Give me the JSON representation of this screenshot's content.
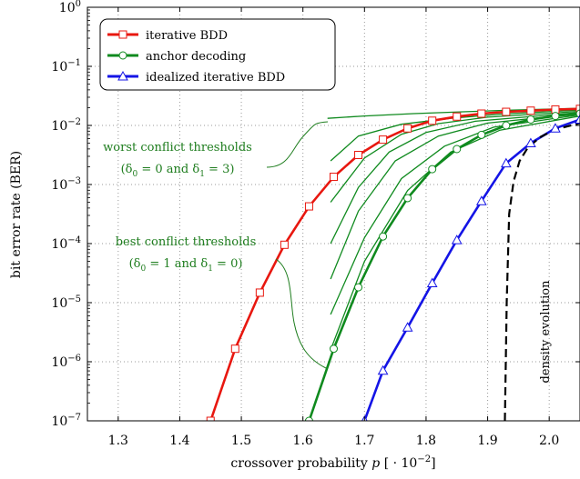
{
  "colors": {
    "iterative": "#e8170f",
    "anchor": "#0f8a1e",
    "ideal": "#1414e6",
    "density": "#000000",
    "annotation": "#1e7d1e",
    "grid": "#9a9a9a"
  },
  "chart_data": {
    "type": "line",
    "xlabel": "crossover probability p [·10−2]",
    "ylabel": "bit error rate (BER)",
    "xlim": [
      1.25,
      2.05
    ],
    "ylim_log10": [
      -7,
      0
    ],
    "log_y": true,
    "grid": true,
    "x_ticks": [
      {
        "value": 1.3,
        "label": "1.3"
      },
      {
        "value": 1.4,
        "label": "1.4"
      },
      {
        "value": 1.5,
        "label": "1.5"
      },
      {
        "value": 1.6,
        "label": "1.6"
      },
      {
        "value": 1.7,
        "label": "1.7"
      },
      {
        "value": 1.8,
        "label": "1.8"
      },
      {
        "value": 1.9,
        "label": "1.9"
      },
      {
        "value": 2.0,
        "label": "2.0"
      }
    ],
    "y_ticks": [
      {
        "exp": 0,
        "base": "10",
        "sup": "0"
      },
      {
        "exp": -1,
        "base": "10",
        "sup": "−1"
      },
      {
        "exp": -2,
        "base": "10",
        "sup": "−2"
      },
      {
        "exp": -3,
        "base": "10",
        "sup": "−3"
      },
      {
        "exp": -4,
        "base": "10",
        "sup": "−4"
      },
      {
        "exp": -5,
        "base": "10",
        "sup": "−5"
      },
      {
        "exp": -6,
        "base": "10",
        "sup": "−6"
      },
      {
        "exp": -7,
        "base": "10",
        "sup": "−7"
      }
    ],
    "legend_position": "top-left",
    "series": [
      {
        "name": "iterative BDD",
        "marker": "square",
        "x": [
          1.45,
          1.49,
          1.53,
          1.57,
          1.61,
          1.65,
          1.69,
          1.73,
          1.77,
          1.81,
          1.85,
          1.89,
          1.93,
          1.97,
          2.01,
          2.05
        ],
        "log10_y": [
          -7.0,
          -5.78,
          -4.83,
          -4.02,
          -3.37,
          -2.87,
          -2.5,
          -2.24,
          -2.05,
          -1.92,
          -1.85,
          -1.8,
          -1.77,
          -1.75,
          -1.73,
          -1.72
        ]
      },
      {
        "name": "anchor decoding",
        "marker": "circle",
        "x": [
          1.61,
          1.65,
          1.69,
          1.73,
          1.77,
          1.81,
          1.85,
          1.89,
          1.93,
          1.97,
          2.01,
          2.05
        ],
        "log10_y": [
          -7.0,
          -5.78,
          -4.74,
          -3.88,
          -3.23,
          -2.74,
          -2.4,
          -2.16,
          -2.0,
          -1.9,
          -1.84,
          -1.8
        ]
      },
      {
        "name": "idealized iterative BDD",
        "marker": "triangle",
        "x": [
          1.7,
          1.73,
          1.77,
          1.81,
          1.85,
          1.89,
          1.93,
          1.97,
          2.01,
          2.05
        ],
        "log10_y": [
          -7.0,
          -6.15,
          -5.42,
          -4.67,
          -3.94,
          -3.28,
          -2.64,
          -2.3,
          -2.05,
          -1.9
        ]
      },
      {
        "name": "density evolution",
        "style": "dashed",
        "x": [
          1.928,
          1.931,
          1.935,
          1.942,
          1.952,
          1.965,
          1.985,
          2.01,
          2.05
        ],
        "log10_y": [
          -7.0,
          -5.0,
          -3.5,
          -2.95,
          -2.6,
          -2.38,
          -2.2,
          -2.07,
          -1.96
        ]
      }
    ],
    "threshold_curves": [
      {
        "x": [
          1.64,
          1.7,
          1.78,
          1.86,
          1.94,
          2.05
        ],
        "log10_y": [
          -1.88,
          -1.84,
          -1.8,
          -1.77,
          -1.74,
          -1.71
        ]
      },
      {
        "x": [
          1.645,
          1.69,
          1.76,
          1.84,
          1.92,
          2.05
        ],
        "log10_y": [
          -2.6,
          -2.18,
          -1.98,
          -1.88,
          -1.81,
          -1.74
        ]
      },
      {
        "x": [
          1.645,
          1.7,
          1.76,
          1.82,
          1.9,
          2.05
        ],
        "log10_y": [
          -3.3,
          -2.55,
          -2.15,
          -1.97,
          -1.86,
          -1.76
        ]
      },
      {
        "x": [
          1.645,
          1.69,
          1.74,
          1.8,
          1.88,
          2.05
        ],
        "log10_y": [
          -4.0,
          -3.05,
          -2.45,
          -2.12,
          -1.93,
          -1.78
        ]
      },
      {
        "x": [
          1.645,
          1.69,
          1.75,
          1.82,
          1.9,
          2.05
        ],
        "log10_y": [
          -4.6,
          -3.45,
          -2.6,
          -2.18,
          -1.96,
          -1.8
        ]
      },
      {
        "x": [
          1.645,
          1.7,
          1.76,
          1.83,
          1.91,
          2.05
        ],
        "log10_y": [
          -5.2,
          -3.9,
          -2.9,
          -2.35,
          -2.03,
          -1.82
        ]
      },
      {
        "x": [
          1.645,
          1.7,
          1.77,
          1.84,
          1.92,
          2.05
        ],
        "log10_y": [
          -5.8,
          -4.3,
          -3.1,
          -2.45,
          -2.08,
          -1.84
        ]
      }
    ],
    "annotations": [
      {
        "lines": [
          "worst conflict thresholds",
          "(δ0 = 0 and δ1 = 3)"
        ],
        "text_line1": "worst conflict thresholds",
        "text_line2_a": "(δ",
        "text_line2_sub1": "0",
        "text_line2_b": " = 0 and δ",
        "text_line2_sub2": "1",
        "text_line2_c": " = 3)"
      },
      {
        "lines": [
          "best conflict thresholds",
          "(δ0 = 1 and δ1 = 0)"
        ],
        "text_line1": "best conflict thresholds",
        "text_line2_a": "(δ",
        "text_line2_sub1": "0",
        "text_line2_b": " = 1 and δ",
        "text_line2_sub2": "1",
        "text_line2_c": " = 0)"
      }
    ],
    "density_label": "density evolution"
  }
}
